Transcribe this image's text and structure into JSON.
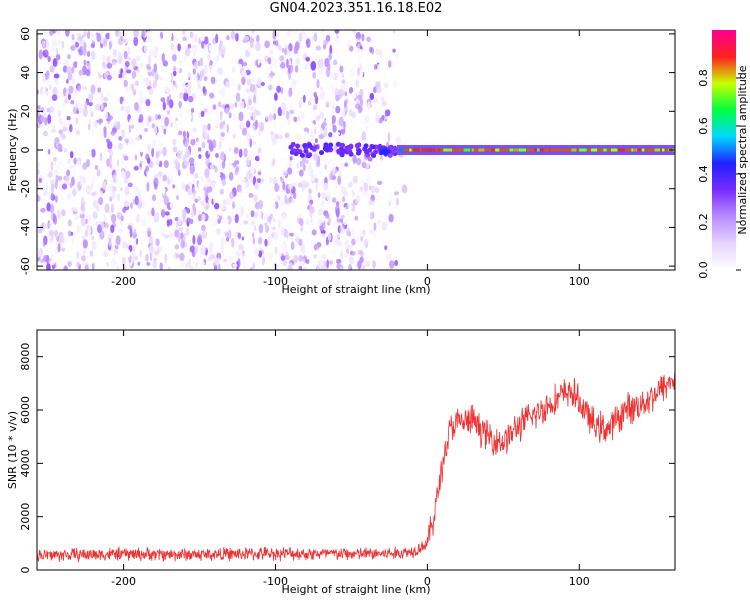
{
  "page": {
    "title": "GN04.2023.351.16.18.E02"
  },
  "colors": {
    "spectrogram_scale": [
      "#ffffff",
      "#e6d4ff",
      "#b98cff",
      "#7a2cff",
      "#2020ff",
      "#00d8ff",
      "#00ff40",
      "#c8ff00",
      "#ff2020",
      "#ff0090"
    ],
    "snr_line": "#f03030",
    "axis": "#000000"
  },
  "chart_data": [
    {
      "type": "heatmap",
      "xlabel": "Height of straight line (km)",
      "ylabel": "Frequency (Hz)",
      "xlim": [
        -257,
        163
      ],
      "ylim": [
        -62,
        62
      ],
      "xticks": [
        -200,
        -100,
        0,
        100
      ],
      "yticks": [
        -60,
        -40,
        -20,
        0,
        20,
        40,
        60
      ],
      "noise_region_x": [
        -257,
        -20
      ],
      "noise_amplitude_range": [
        0.0,
        0.3
      ],
      "signal_band": {
        "x": [
          -20,
          163
        ],
        "frequency_hz": 0,
        "amplitude": 0.95,
        "halo_amplitude": 0.5
      },
      "colorbar": {
        "label": "Normalized spectral amplitude",
        "ticks": [
          0.0,
          0.2,
          0.4,
          0.6,
          0.8
        ],
        "range": [
          0,
          1
        ]
      }
    },
    {
      "type": "line",
      "xlabel": "Height of straight line (km)",
      "ylabel": "SNR (10 * v/v)",
      "xlim": [
        -257,
        163
      ],
      "ylim": [
        0,
        9000
      ],
      "xticks": [
        -200,
        -100,
        0,
        100
      ],
      "yticks": [
        0,
        2000,
        4000,
        6000,
        8000
      ],
      "series": [
        {
          "x": [
            -257,
            -200,
            -150,
            -100,
            -50,
            -20,
            -10,
            0,
            5,
            10,
            15,
            20,
            30,
            40,
            50,
            60,
            70,
            80,
            90,
            95,
            100,
            110,
            120,
            130,
            140,
            150,
            163
          ],
          "values": [
            550,
            600,
            580,
            620,
            600,
            620,
            700,
            1000,
            2200,
            4000,
            5300,
            5500,
            5600,
            5000,
            4800,
            5400,
            5800,
            6200,
            6600,
            6700,
            6300,
            5400,
            5300,
            6000,
            6200,
            6600,
            7200
          ]
        }
      ]
    }
  ]
}
